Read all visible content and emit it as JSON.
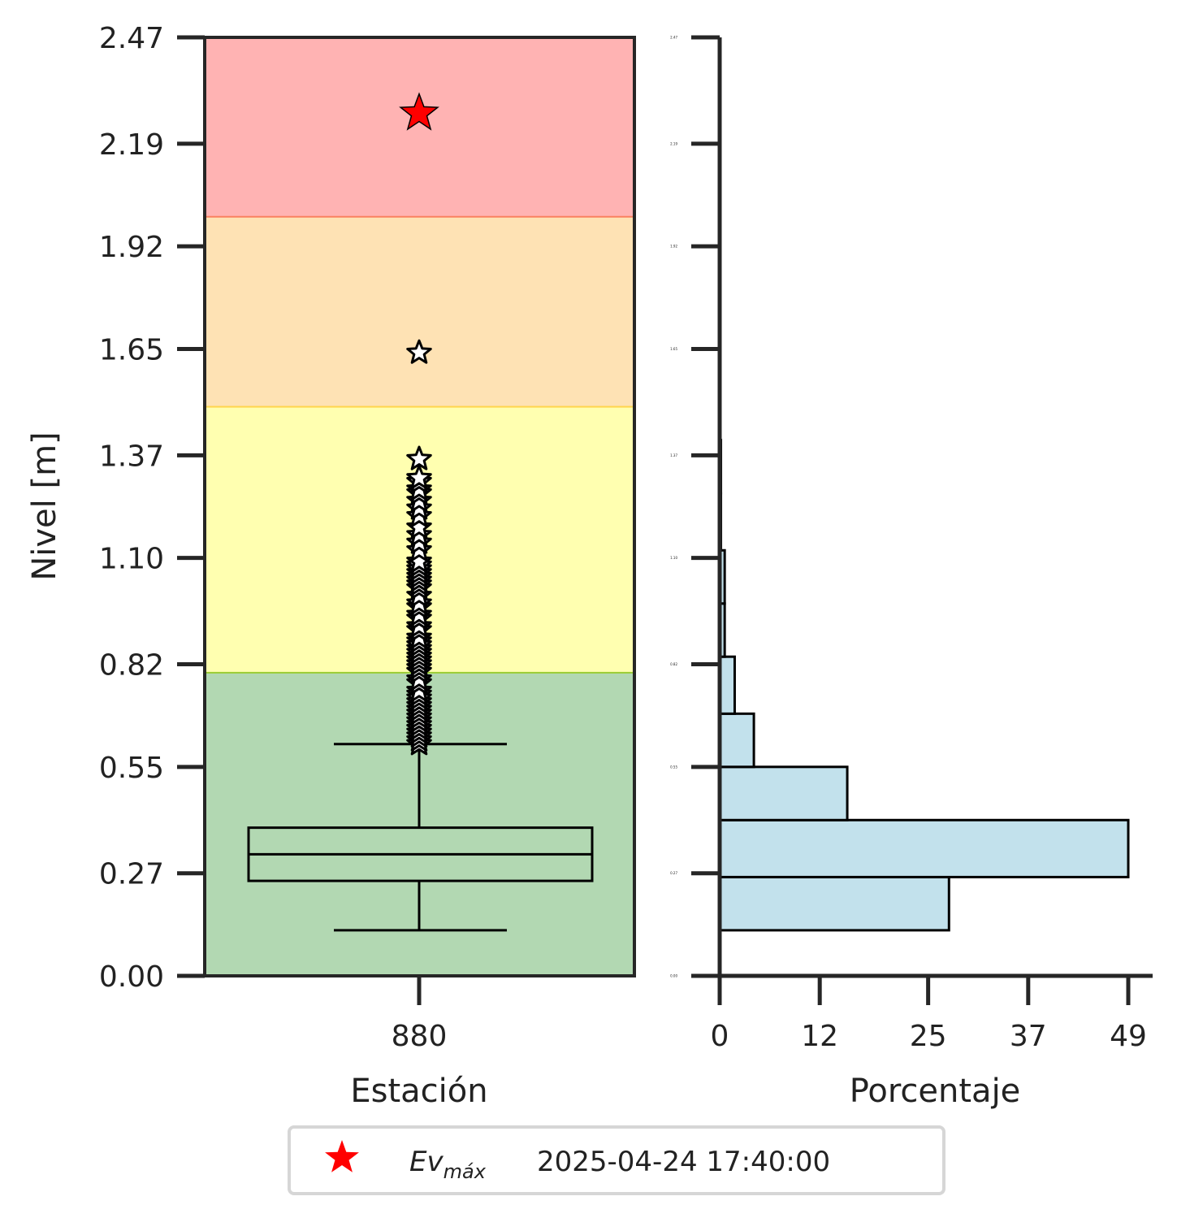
{
  "chart_data": [
    {
      "type": "box",
      "ylabel": "Nivel [m]",
      "xlabel": "Estación",
      "category": "880",
      "ylim": [
        0,
        2.47
      ],
      "yticks": [
        0.0,
        0.27,
        0.55,
        0.82,
        1.1,
        1.37,
        1.65,
        1.92,
        2.19,
        2.47
      ],
      "ytick_labels": [
        "0.00",
        "0.27",
        "0.55",
        "0.82",
        "1.10",
        "1.37",
        "1.65",
        "1.92",
        "2.19",
        "2.47"
      ],
      "bands": [
        {
          "from": 0.0,
          "to": 0.8,
          "color": "#b2d8b2",
          "edge": "#9acd32"
        },
        {
          "from": 0.8,
          "to": 1.5,
          "color": "#ffffb0",
          "edge": "#ffd54f"
        },
        {
          "from": 1.5,
          "to": 2.0,
          "color": "#fee2b4",
          "edge": "#fa8060"
        },
        {
          "from": 2.0,
          "to": 2.47,
          "color": "#ffb3b3",
          "edge": null
        }
      ],
      "box": {
        "whisker_low": 0.12,
        "q1": 0.25,
        "median": 0.32,
        "q3": 0.39,
        "whisker_high": 0.61
      },
      "outliers": [
        0.61,
        0.62,
        0.63,
        0.64,
        0.65,
        0.66,
        0.67,
        0.68,
        0.69,
        0.7,
        0.71,
        0.72,
        0.73,
        0.74,
        0.75,
        0.77,
        0.78,
        0.8,
        0.81,
        0.82,
        0.83,
        0.84,
        0.85,
        0.86,
        0.87,
        0.88,
        0.89,
        0.91,
        0.92,
        0.94,
        0.95,
        0.97,
        0.98,
        1.0,
        1.02,
        1.03,
        1.04,
        1.05,
        1.06,
        1.07,
        1.08,
        1.09,
        1.12,
        1.14,
        1.16,
        1.18,
        1.21,
        1.23,
        1.25,
        1.27,
        1.28,
        1.3,
        1.31,
        1.36,
        1.64
      ],
      "max_event": {
        "value": 2.27,
        "color": "#ff0000"
      }
    },
    {
      "type": "histogram",
      "orientation": "horizontal",
      "xlabel": "Porcentaje",
      "xlim": [
        0,
        49
      ],
      "xticks": [
        0,
        12,
        25,
        37,
        49
      ],
      "xtick_labels": [
        "0",
        "12",
        "25",
        "37",
        "49"
      ],
      "bins": [
        {
          "from": 0.12,
          "to": 0.26,
          "value": 27.5
        },
        {
          "from": 0.26,
          "to": 0.41,
          "value": 49.0
        },
        {
          "from": 0.41,
          "to": 0.55,
          "value": 15.3
        },
        {
          "from": 0.55,
          "to": 0.69,
          "value": 4.1
        },
        {
          "from": 0.69,
          "to": 0.84,
          "value": 1.8
        },
        {
          "from": 0.84,
          "to": 0.98,
          "value": 0.6
        },
        {
          "from": 0.98,
          "to": 1.12,
          "value": 0.6
        },
        {
          "from": 1.12,
          "to": 1.27,
          "value": 0.15
        },
        {
          "from": 1.27,
          "to": 1.41,
          "value": 0.15
        }
      ],
      "bar_color": "#c2e1ec"
    }
  ],
  "legend": {
    "marker_color": "#ff0000",
    "label_main": "Ev",
    "label_sub": "máx",
    "timestamp": "2025-04-24 17:40:00"
  }
}
